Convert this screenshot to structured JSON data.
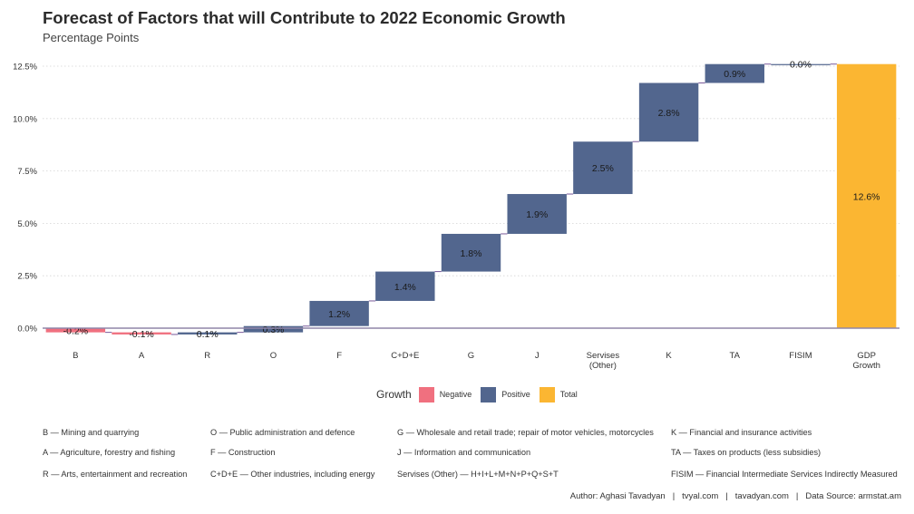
{
  "title": "Forecast of Factors that will Contribute to 2022 Economic Growth",
  "subtitle": "Percentage Points",
  "colors": {
    "Negative": "#F0707F",
    "Positive": "#52668E",
    "Total": "#FBB632"
  },
  "chart_data": {
    "type": "waterfall",
    "ylim": [
      -0.5,
      12.9
    ],
    "yticks": [
      0,
      2.5,
      5,
      7.5,
      10,
      12.5
    ],
    "ytick_labels": [
      "0.0%",
      "2.5%",
      "5.0%",
      "7.5%",
      "10.0%",
      "12.5%"
    ],
    "grid": true,
    "categories": [
      "B",
      "A",
      "R",
      "O",
      "F",
      "C+D+E",
      "G",
      "J",
      "Servises (Other)",
      "K",
      "TA",
      "FISIM",
      "GDP Growth"
    ],
    "bars": [
      {
        "category": "B",
        "value": -0.2,
        "label": "-0.2%",
        "type": "Negative"
      },
      {
        "category": "A",
        "value": -0.1,
        "label": "-0.1%",
        "type": "Negative"
      },
      {
        "category": "R",
        "value": 0.1,
        "label": "0.1%",
        "type": "Positive"
      },
      {
        "category": "O",
        "value": 0.3,
        "label": "0.3%",
        "type": "Positive"
      },
      {
        "category": "F",
        "value": 1.2,
        "label": "1.2%",
        "type": "Positive"
      },
      {
        "category": "C+D+E",
        "value": 1.4,
        "label": "1.4%",
        "type": "Positive"
      },
      {
        "category": "G",
        "value": 1.8,
        "label": "1.8%",
        "type": "Positive"
      },
      {
        "category": "J",
        "value": 1.9,
        "label": "1.9%",
        "type": "Positive"
      },
      {
        "category": "Servises (Other)",
        "value": 2.5,
        "label": "2.5%",
        "type": "Positive"
      },
      {
        "category": "K",
        "value": 2.8,
        "label": "2.8%",
        "type": "Positive"
      },
      {
        "category": "TA",
        "value": 0.9,
        "label": "0.9%",
        "type": "Positive"
      },
      {
        "category": "FISIM",
        "value": 0.0,
        "label": "0.0%",
        "type": "Positive"
      },
      {
        "category": "GDP Growth",
        "value": 12.6,
        "label": "12.6%",
        "type": "Total"
      }
    ],
    "legend": {
      "title": "Growth",
      "position": "bottom",
      "entries": [
        "Negative",
        "Positive",
        "Total"
      ]
    }
  },
  "abbreviations": [
    "B — Mining and quarrying",
    "A — Agriculture, forestry and fishing",
    "R — Arts, entertainment and recreation",
    "O — Public administration and defence",
    "F — Construction",
    "C+D+E — Other industries, including energy",
    "G — Wholesale and retail trade; repair of motor vehicles, motorcycles",
    "J — Information and communication",
    "Servises (Other) — H+I+L+M+N+P+Q+S+T",
    "K — Financial and insurance activities",
    "TA — Taxes on products (less subsidies)",
    "FISIM — Financial Intermediate Services Indirectly Measured"
  ],
  "footer": {
    "author": "Author: Aghasi Tavadyan",
    "site1": "tvyal.com",
    "site2": "tavadyan.com",
    "source": "Data Source: armstat.am"
  }
}
